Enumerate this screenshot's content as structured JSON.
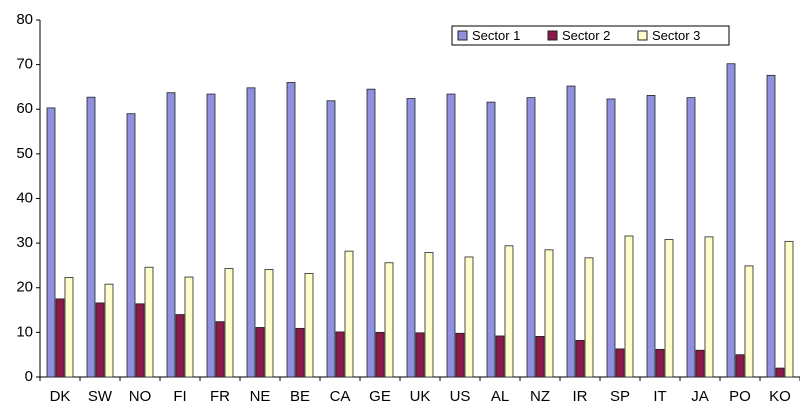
{
  "chart_data": {
    "type": "bar",
    "categories": [
      "DK",
      "SW",
      "NO",
      "FI",
      "FR",
      "NE",
      "BE",
      "CA",
      "GE",
      "UK",
      "US",
      "AL",
      "NZ",
      "IR",
      "SP",
      "IT",
      "JA",
      "PO",
      "KO"
    ],
    "series": [
      {
        "name": "Sector 1",
        "color": "#9090e0",
        "values": [
          60.3,
          62.7,
          59,
          63.7,
          63.4,
          64.8,
          66,
          61.9,
          64.5,
          62.4,
          63.4,
          61.6,
          62.6,
          65.2,
          62.3,
          63.1,
          62.6,
          70.2,
          67.6
        ]
      },
      {
        "name": "Sector 2",
        "color": "#8b1a4a",
        "values": [
          17.5,
          16.6,
          16.4,
          14,
          12.4,
          11.1,
          10.9,
          10.1,
          10,
          9.9,
          9.8,
          9.2,
          9.1,
          8.2,
          6.3,
          6.2,
          6,
          5,
          2
        ]
      },
      {
        "name": "Sector 3",
        "color": "#ffffcc",
        "values": [
          22.3,
          20.8,
          24.6,
          22.4,
          24.3,
          24.1,
          23.2,
          28.2,
          25.6,
          27.9,
          26.9,
          29.4,
          28.5,
          26.7,
          31.6,
          30.8,
          31.4,
          24.9,
          30.4
        ]
      }
    ],
    "ylim": [
      0,
      80
    ],
    "yticks": [
      0,
      10,
      20,
      30,
      40,
      50,
      60,
      70,
      80
    ],
    "grid": false,
    "legend": "top-right"
  }
}
